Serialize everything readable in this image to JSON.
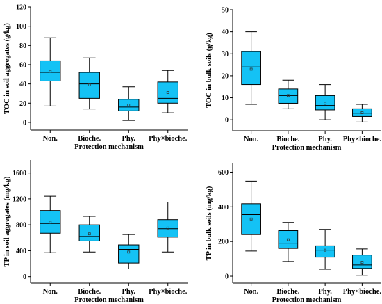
{
  "colors": {
    "box_fill": "#14C2F5",
    "line": "#000000"
  },
  "chart_data": [
    {
      "type": "box",
      "ylabel": "TOC in soil aggregates (g/kg)",
      "xlabel": "Protection mechanism",
      "categories": [
        "Non.",
        "Bioche.",
        "Phy.",
        "Phy×bioche."
      ],
      "ylim": [
        -8,
        120
      ],
      "yticks": [
        0,
        20,
        40,
        60,
        80,
        100,
        120
      ],
      "boxes": [
        {
          "min": 17,
          "q1": 43,
          "median": 52,
          "q3": 64,
          "max": 88,
          "mean": 53
        },
        {
          "min": 14,
          "q1": 25,
          "median": 40,
          "q3": 52,
          "max": 67,
          "mean": 39
        },
        {
          "min": 2,
          "q1": 12,
          "median": 16,
          "q3": 24,
          "max": 37,
          "mean": 18
        },
        {
          "min": 10,
          "q1": 20,
          "median": 25,
          "q3": 42,
          "max": 54,
          "mean": 31
        }
      ]
    },
    {
      "type": "box",
      "ylabel": "TOC in bulk soils (g/kg)",
      "xlabel": "Protection mechanism",
      "categories": [
        "Non.",
        "Bioche.",
        "Phy.",
        "Phy×bioche."
      ],
      "ylim": [
        -5,
        50
      ],
      "yticks": [
        0,
        10,
        20,
        30,
        40,
        50
      ],
      "boxes": [
        {
          "min": 7,
          "q1": 16,
          "median": 24,
          "q3": 31,
          "max": 40,
          "mean": 23
        },
        {
          "min": 5,
          "q1": 7.5,
          "median": 11,
          "q3": 14,
          "max": 18,
          "mean": 11
        },
        {
          "min": 0,
          "q1": 4.5,
          "median": 6.5,
          "q3": 11,
          "max": 16,
          "mean": 7.5
        },
        {
          "min": -1,
          "q1": 1.5,
          "median": 3,
          "q3": 5,
          "max": 7,
          "mean": 3.2
        }
      ]
    },
    {
      "type": "box",
      "ylabel": "TP in soil aggregates (mg/kg)",
      "xlabel": "Protection mechanism",
      "categories": [
        "Non.",
        "Bioche.",
        "Phy.",
        "Phy×bioche."
      ],
      "ylim": [
        -100,
        1800
      ],
      "yticks": [
        0,
        400,
        800,
        1200,
        1600
      ],
      "boxes": [
        {
          "min": 370,
          "q1": 670,
          "median": 820,
          "q3": 1020,
          "max": 1240,
          "mean": 840
        },
        {
          "min": 380,
          "q1": 550,
          "median": 620,
          "q3": 800,
          "max": 930,
          "mean": 660
        },
        {
          "min": 120,
          "q1": 210,
          "median": 420,
          "q3": 490,
          "max": 650,
          "mean": 380
        },
        {
          "min": 380,
          "q1": 610,
          "median": 740,
          "q3": 880,
          "max": 1150,
          "mean": 750
        }
      ]
    },
    {
      "type": "box",
      "ylabel": "TP in bulk soils (mg/kg)",
      "xlabel": "Protection mechanism",
      "categories": [
        "Non.",
        "Bioche.",
        "Phy.",
        "Phy×bioche."
      ],
      "ylim": [
        -40,
        650
      ],
      "yticks": [
        0,
        200,
        400,
        600
      ],
      "boxes": [
        {
          "min": 145,
          "q1": 240,
          "median": 355,
          "q3": 418,
          "max": 548,
          "mean": 330
        },
        {
          "min": 85,
          "q1": 160,
          "median": 190,
          "q3": 263,
          "max": 310,
          "mean": 210
        },
        {
          "min": 40,
          "q1": 110,
          "median": 150,
          "q3": 175,
          "max": 270,
          "mean": 150
        },
        {
          "min": 5,
          "q1": 45,
          "median": 65,
          "q3": 122,
          "max": 157,
          "mean": 80
        }
      ]
    }
  ]
}
